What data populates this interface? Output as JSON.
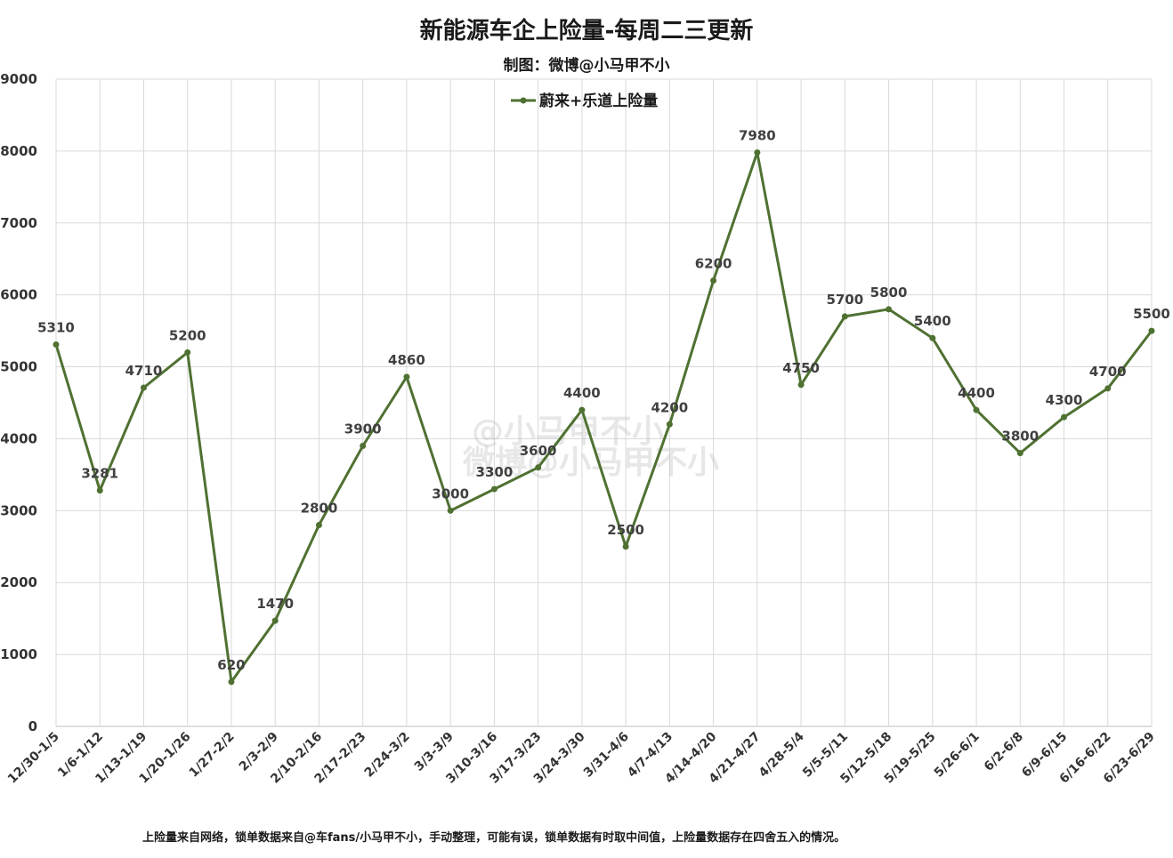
{
  "colors": {
    "series": "#4f7132",
    "grid": "#d9d9d9",
    "axis": "#bfbfbf"
  },
  "chart_data": {
    "type": "line",
    "title": "新能源车企上险量-每周二三更新",
    "subtitle": "制图：微博@小马甲不小",
    "legend_position": "top-center",
    "grid": true,
    "ylim": [
      0,
      9000
    ],
    "yticks": [
      0,
      1000,
      2000,
      3000,
      4000,
      5000,
      6000,
      7000,
      8000,
      9000
    ],
    "categories": [
      "12/30-1/5",
      "1/6-1/12",
      "1/13-1/19",
      "1/20-1/26",
      "1/27-2/2",
      "2/3-2/9",
      "2/10-2/16",
      "2/17-2/23",
      "2/24-3/2",
      "3/3-3/9",
      "3/10-3/16",
      "3/17-3/23",
      "3/24-3/30",
      "3/31-4/6",
      "4/7-4/13",
      "4/14-4/20",
      "4/21-4/27",
      "4/28-5/4",
      "5/5-5/11",
      "5/12-5/18",
      "5/19-5/25",
      "5/26-6/1",
      "6/2-6/8",
      "6/9-6/15",
      "6/16-6/22",
      "6/23-6/29"
    ],
    "series": [
      {
        "name": "蔚来+乐道上险量",
        "values": [
          5310,
          3281,
          4710,
          5200,
          620,
          1470,
          2800,
          3900,
          4860,
          3000,
          3300,
          3600,
          4400,
          2500,
          4200,
          6200,
          7980,
          4750,
          5700,
          5800,
          5400,
          4400,
          3800,
          4300,
          4700,
          5500
        ]
      }
    ]
  },
  "footnote": "上险量来自网络，锁单数据来自@车fans/小马甲不小，手动整理，可能有误，锁单数据有时取中间值，上险量数据存在四舍五入的情况。",
  "watermark": [
    "@小马甲不小",
    "微博@小马甲不小"
  ]
}
